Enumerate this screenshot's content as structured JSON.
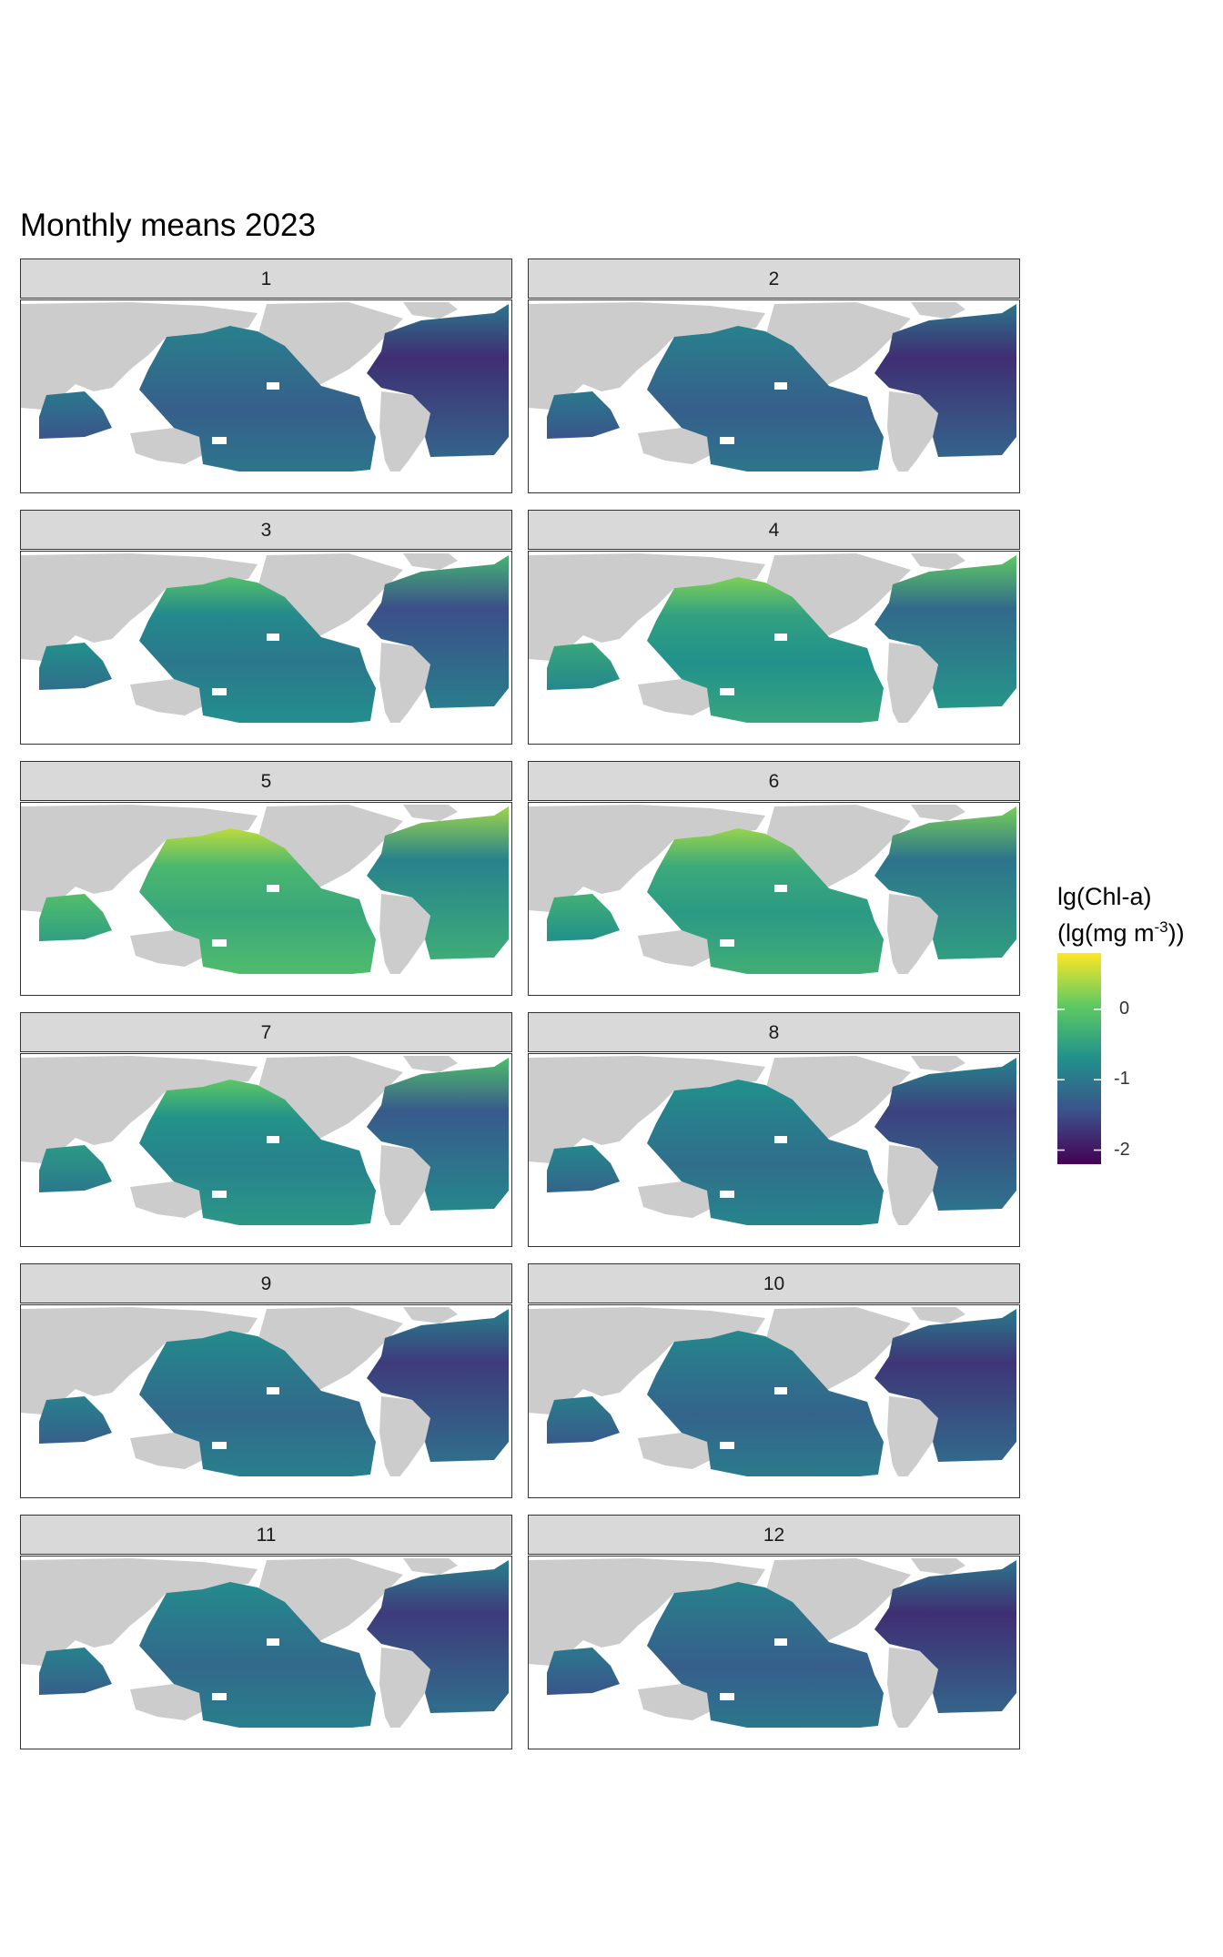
{
  "title": "Monthly means 2023",
  "panels": [
    {
      "label": "1",
      "level": 0.42
    },
    {
      "label": "2",
      "level": 0.42
    },
    {
      "label": "3",
      "level": 0.52
    },
    {
      "label": "4",
      "level": 0.62
    },
    {
      "label": "5",
      "level": 0.72
    },
    {
      "label": "6",
      "level": 0.66
    },
    {
      "label": "7",
      "level": 0.56
    },
    {
      "label": "8",
      "level": 0.48
    },
    {
      "label": "9",
      "level": 0.46
    },
    {
      "label": "10",
      "level": 0.44
    },
    {
      "label": "11",
      "level": 0.46
    },
    {
      "label": "12",
      "level": 0.42
    }
  ],
  "legend": {
    "title_line1": "lg(Chl-a)",
    "title_line2_prefix": "(lg(mg m",
    "title_line2_sup": "-3",
    "title_line2_suffix": "))",
    "ticks": [
      {
        "label": "0",
        "value": 0
      },
      {
        "label": "-1",
        "value": -1
      },
      {
        "label": "-2",
        "value": -2
      }
    ],
    "range": [
      -2.2,
      0.8
    ],
    "colors": [
      "#440154",
      "#3b528b",
      "#21918c",
      "#5ec962",
      "#fde725"
    ]
  },
  "land_color": "#cccccc"
}
